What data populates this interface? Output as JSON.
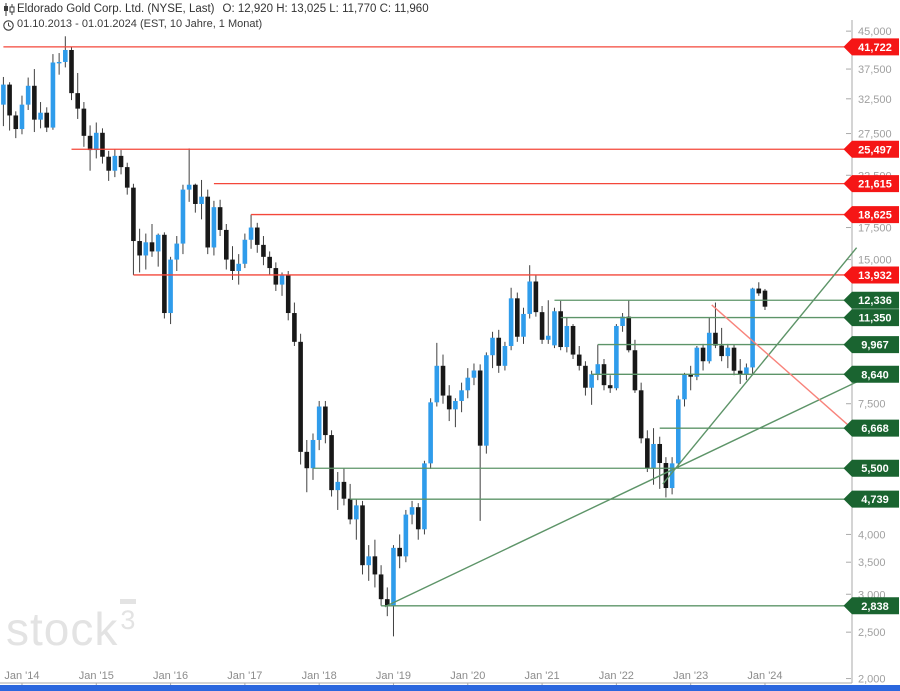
{
  "header": {
    "title": "Eldorado Gold Corp. Ltd. (NYSE, Last)",
    "ohlc": "O: 12,920  H: 13,025  L: 11,770  C: 11,960",
    "range_line": "01.10.2013 - 01.01.2024   (EST, 10 Jahre, 1 Monat)"
  },
  "watermark": {
    "text": "stock",
    "sup": "3"
  },
  "colors": {
    "up_candle": "#2f9ceb",
    "down_candle": "#181818",
    "wick": "#404040",
    "red_line": "#f4473a",
    "red_label_bg": "#f51616",
    "red_trend": "#f8837b",
    "green_line": "#5d9468",
    "green_label_bg": "#1a6430",
    "axis_line": "#aaaaaa",
    "tick_text": "#a0a0a0",
    "x_label_text": "#8c8c8c",
    "bottom_bar": "#2b67de"
  },
  "chart_data": {
    "type": "candlestick",
    "title": "Eldorado Gold Corp. Ltd.",
    "exchange": "NYSE",
    "period": "10 Jahre, 1 Monat",
    "date_range": "01.10.2013 - 01.01.2024",
    "last_candle": {
      "open": "12,920",
      "high": "13,025",
      "low": "11,770",
      "close": "11,960"
    },
    "scale": "log",
    "y_axis_ticks": [
      {
        "value": 45000,
        "label": "45,000"
      },
      {
        "value": 37500,
        "label": "37,500"
      },
      {
        "value": 32500,
        "label": "32,500"
      },
      {
        "value": 27500,
        "label": "27,500"
      },
      {
        "value": 22500,
        "label": "22,500"
      },
      {
        "value": 17500,
        "label": "17,500"
      },
      {
        "value": 15000,
        "label": "15,000"
      },
      {
        "value": 7500,
        "label": "7,500"
      },
      {
        "value": 4000,
        "label": "4,000"
      },
      {
        "value": 3500,
        "label": "3,500"
      },
      {
        "value": 3000,
        "label": "3,000"
      },
      {
        "value": 2500,
        "label": "2,500"
      },
      {
        "value": 2000,
        "label": "2,000"
      }
    ],
    "x_axis_ticks": [
      {
        "label": "Jan '14",
        "month_index": 3
      },
      {
        "label": "Jan '15",
        "month_index": 15
      },
      {
        "label": "Jan '16",
        "month_index": 27
      },
      {
        "label": "Jan '17",
        "month_index": 39
      },
      {
        "label": "Jan '18",
        "month_index": 51
      },
      {
        "label": "Jan '19",
        "month_index": 63
      },
      {
        "label": "Jan '20",
        "month_index": 75
      },
      {
        "label": "Jan '21",
        "month_index": 87
      },
      {
        "label": "Jan '22",
        "month_index": 99
      },
      {
        "label": "Jan '23",
        "month_index": 111
      },
      {
        "label": "Jan '24",
        "month_index": 123
      }
    ],
    "resistance_levels": [
      {
        "value": 41722,
        "label": "41,722",
        "from_index": 0
      },
      {
        "value": 25497,
        "label": "25,497",
        "from_index": 11
      },
      {
        "value": 21615,
        "label": "21,615",
        "from_index": 34
      },
      {
        "value": 18625,
        "label": "18,625",
        "from_index": 40
      },
      {
        "value": 13932,
        "label": "13,932",
        "from_index": 21
      }
    ],
    "support_levels": [
      {
        "value": 12336,
        "label": "12,336",
        "from_index": 89
      },
      {
        "value": 11350,
        "label": "11,350",
        "from_index": 90
      },
      {
        "value": 9967,
        "label": "9,967",
        "from_index": 96
      },
      {
        "value": 8640,
        "label": "8,640",
        "from_index": 95
      },
      {
        "value": 6668,
        "label": "6,668",
        "from_index": 106
      },
      {
        "value": 5500,
        "label": "5,500",
        "from_index": 50
      },
      {
        "value": 4739,
        "label": "4,739",
        "from_index": 56
      },
      {
        "value": 2838,
        "label": "2,838",
        "from_index": 61
      }
    ],
    "trendlines": [
      {
        "kind": "support-long",
        "color_key": "green_line",
        "i1": 61.6,
        "p1": 2825,
        "i2": 138.0,
        "p2": 8350
      },
      {
        "kind": "support-steep",
        "color_key": "green_line",
        "i1": 106.5,
        "p1": 5100,
        "i2": 137.8,
        "p2": 15880
      },
      {
        "kind": "resistance",
        "color_key": "red_trend",
        "i1": 114.4,
        "p1": 12060,
        "i2": 137.0,
        "p2": 6668
      }
    ],
    "candles": [
      [
        "2013-10",
        31600,
        36100,
        28500,
        34800
      ],
      [
        "2013-11",
        34800,
        35200,
        27900,
        30000
      ],
      [
        "2013-12",
        30000,
        30600,
        26900,
        28100
      ],
      [
        "2014-01",
        28100,
        33000,
        27400,
        31600
      ],
      [
        "2014-02",
        31600,
        36000,
        30800,
        34600
      ],
      [
        "2014-03",
        34600,
        37500,
        27700,
        29400
      ],
      [
        "2014-04",
        29400,
        32000,
        28200,
        30400
      ],
      [
        "2014-05",
        30400,
        31200,
        27700,
        28300
      ],
      [
        "2014-06",
        28300,
        40300,
        28000,
        38700
      ],
      [
        "2014-07",
        38700,
        40500,
        36500,
        38800
      ],
      [
        "2014-08",
        38800,
        43900,
        37800,
        41100
      ],
      [
        "2014-09",
        41100,
        41800,
        32300,
        33400
      ],
      [
        "2014-10",
        33400,
        36800,
        29500,
        31000
      ],
      [
        "2014-11",
        31000,
        32000,
        25800,
        27200
      ],
      [
        "2014-12",
        27200,
        28600,
        23000,
        25400
      ],
      [
        "2015-01",
        25400,
        29000,
        24400,
        27600
      ],
      [
        "2015-02",
        27600,
        28200,
        23800,
        24600
      ],
      [
        "2015-03",
        24600,
        25300,
        21900,
        23000
      ],
      [
        "2015-04",
        23000,
        25500,
        22300,
        24700
      ],
      [
        "2015-05",
        24700,
        25400,
        22600,
        23400
      ],
      [
        "2015-06",
        23400,
        23900,
        20500,
        21200
      ],
      [
        "2015-07",
        21200,
        21600,
        13932,
        16400
      ],
      [
        "2015-08",
        16400,
        17400,
        14100,
        15300
      ],
      [
        "2015-09",
        15300,
        17000,
        14300,
        16300
      ],
      [
        "2015-10",
        16300,
        17800,
        15200,
        15600
      ],
      [
        "2015-11",
        15600,
        17000,
        14500,
        16900
      ],
      [
        "2015-12",
        16900,
        17100,
        11300,
        11600
      ],
      [
        "2016-01",
        11600,
        15200,
        11000,
        15000
      ],
      [
        "2016-02",
        15000,
        16800,
        14200,
        16200
      ],
      [
        "2016-03",
        16200,
        21500,
        15400,
        21000
      ],
      [
        "2016-04",
        21000,
        25600,
        19800,
        21500
      ],
      [
        "2016-05",
        21500,
        21615,
        18800,
        19600
      ],
      [
        "2016-06",
        19600,
        22000,
        18200,
        20300
      ],
      [
        "2016-07",
        20300,
        21000,
        15400,
        15900
      ],
      [
        "2016-08",
        15900,
        19900,
        15300,
        19300
      ],
      [
        "2016-09",
        19300,
        20000,
        16800,
        17300
      ],
      [
        "2016-10",
        17300,
        17800,
        14300,
        15000
      ],
      [
        "2016-11",
        15000,
        16000,
        13600,
        14200
      ],
      [
        "2016-12",
        14200,
        15400,
        13300,
        14700
      ],
      [
        "2017-01",
        14700,
        17000,
        14400,
        16500
      ],
      [
        "2017-02",
        16500,
        18625,
        15800,
        17500
      ],
      [
        "2017-03",
        17500,
        17900,
        15500,
        16100
      ],
      [
        "2017-04",
        16100,
        16800,
        14600,
        15200
      ],
      [
        "2017-05",
        15200,
        15600,
        13900,
        14400
      ],
      [
        "2017-06",
        14400,
        14800,
        12900,
        13300
      ],
      [
        "2017-07",
        13300,
        14100,
        12600,
        13900
      ],
      [
        "2017-08",
        13900,
        14200,
        11200,
        11600
      ],
      [
        "2017-09",
        11600,
        12200,
        9900,
        10100
      ],
      [
        "2017-10",
        10100,
        10500,
        5600,
        5950
      ],
      [
        "2017-11",
        5950,
        6300,
        4900,
        5500
      ],
      [
        "2017-12",
        5500,
        6500,
        5200,
        6300
      ],
      [
        "2018-01",
        6300,
        7600,
        6000,
        7400
      ],
      [
        "2018-02",
        7400,
        7600,
        6200,
        6450
      ],
      [
        "2018-03",
        6450,
        6600,
        4800,
        4950
      ],
      [
        "2018-04",
        4950,
        5400,
        4500,
        5150
      ],
      [
        "2018-05",
        5150,
        5500,
        4600,
        4750
      ],
      [
        "2018-06",
        4750,
        5100,
        4200,
        4300
      ],
      [
        "2018-07",
        4300,
        4739,
        3900,
        4600
      ],
      [
        "2018-08",
        4600,
        4700,
        3300,
        3450
      ],
      [
        "2018-09",
        3450,
        3800,
        3200,
        3600
      ],
      [
        "2018-10",
        3600,
        3900,
        3100,
        3300
      ],
      [
        "2018-11",
        3300,
        3450,
        2840,
        2930
      ],
      [
        "2018-12",
        2930,
        3100,
        2700,
        2840
      ],
      [
        "2019-01",
        2840,
        3800,
        2450,
        3750
      ],
      [
        "2019-02",
        3750,
        4000,
        3400,
        3600
      ],
      [
        "2019-03",
        3600,
        4500,
        3500,
        4400
      ],
      [
        "2019-04",
        4400,
        4700,
        4200,
        4560
      ],
      [
        "2019-05",
        4560,
        4650,
        3900,
        4100
      ],
      [
        "2019-06",
        4100,
        5700,
        4000,
        5630
      ],
      [
        "2019-07",
        5630,
        7700,
        5480,
        7550
      ],
      [
        "2019-08",
        7550,
        10050,
        7400,
        9000
      ],
      [
        "2019-09",
        9000,
        9500,
        7500,
        7800
      ],
      [
        "2019-10",
        7800,
        8200,
        6900,
        7300
      ],
      [
        "2019-11",
        7300,
        7700,
        6700,
        7600
      ],
      [
        "2019-12",
        7600,
        8300,
        7200,
        8000
      ],
      [
        "2020-01",
        8000,
        8900,
        7700,
        8500
      ],
      [
        "2020-02",
        8500,
        9100,
        8200,
        8800
      ],
      [
        "2020-03",
        8800,
        9060,
        4270,
        6130
      ],
      [
        "2020-04",
        6130,
        9600,
        5900,
        9470
      ],
      [
        "2020-05",
        9470,
        10600,
        8900,
        10300
      ],
      [
        "2020-06",
        10300,
        10700,
        8700,
        9000
      ],
      [
        "2020-07",
        9000,
        10100,
        8800,
        9900
      ],
      [
        "2020-08",
        9900,
        13100,
        9700,
        12450
      ],
      [
        "2020-09",
        12450,
        12800,
        10100,
        10350
      ],
      [
        "2020-10",
        10350,
        11900,
        10000,
        11550
      ],
      [
        "2020-11",
        11550,
        14600,
        11300,
        13500
      ],
      [
        "2020-12",
        13500,
        13900,
        11400,
        11650
      ],
      [
        "2021-01",
        11650,
        12000,
        10000,
        10200
      ],
      [
        "2021-02",
        10200,
        12336,
        10000,
        10400
      ],
      [
        "2021-03",
        9930,
        11900,
        9800,
        11700
      ],
      [
        "2021-04",
        11700,
        12300,
        9700,
        9850
      ],
      [
        "2021-05",
        9850,
        11350,
        9600,
        10900
      ],
      [
        "2021-06",
        10900,
        11000,
        9300,
        9500
      ],
      [
        "2021-07",
        9500,
        9900,
        8800,
        9000
      ],
      [
        "2021-08",
        9000,
        9200,
        7800,
        8100
      ],
      [
        "2021-09",
        8100,
        8790,
        7460,
        8640
      ],
      [
        "2021-10",
        8640,
        9967,
        8400,
        9070
      ],
      [
        "2021-11",
        9070,
        9300,
        8000,
        8200
      ],
      [
        "2021-12",
        8200,
        8600,
        7900,
        8080
      ],
      [
        "2022-01",
        8080,
        11000,
        8000,
        10900
      ],
      [
        "2022-02",
        10900,
        11600,
        10600,
        11400
      ],
      [
        "2022-03",
        11400,
        12336,
        9600,
        9700
      ],
      [
        "2022-04",
        9700,
        10200,
        7900,
        8000
      ],
      [
        "2022-05",
        8000,
        8300,
        6200,
        6350
      ],
      [
        "2022-06",
        6350,
        6600,
        5400,
        5500
      ],
      [
        "2022-07",
        5500,
        6668,
        5080,
        6180
      ],
      [
        "2022-08",
        6180,
        6400,
        4980,
        5640
      ],
      [
        "2022-09",
        5640,
        5800,
        4780,
        5000
      ],
      [
        "2022-10",
        5000,
        5800,
        4850,
        5630
      ],
      [
        "2022-11",
        5630,
        7800,
        5500,
        7660
      ],
      [
        "2022-12",
        7660,
        8700,
        7400,
        8640
      ],
      [
        "2023-01",
        8640,
        9000,
        8000,
        8540
      ],
      [
        "2023-02",
        8540,
        9900,
        8400,
        9820
      ],
      [
        "2023-03",
        9820,
        10000,
        8800,
        9200
      ],
      [
        "2023-04",
        9200,
        11350,
        9100,
        10550
      ],
      [
        "2023-05",
        10550,
        12200,
        9800,
        9920
      ],
      [
        "2023-06",
        9920,
        10800,
        9200,
        9430
      ],
      [
        "2023-07",
        9430,
        10000,
        8900,
        9820
      ],
      [
        "2023-08",
        9820,
        9980,
        8600,
        8790
      ],
      [
        "2023-09",
        8790,
        9300,
        8250,
        8640
      ],
      [
        "2023-10",
        8640,
        9100,
        8400,
        8930
      ],
      [
        "2023-11",
        8930,
        13100,
        8600,
        13050
      ],
      [
        "2023-12",
        13050,
        13450,
        12600,
        12750
      ],
      [
        "2024-01",
        12920,
        13025,
        11770,
        11960
      ]
    ]
  }
}
